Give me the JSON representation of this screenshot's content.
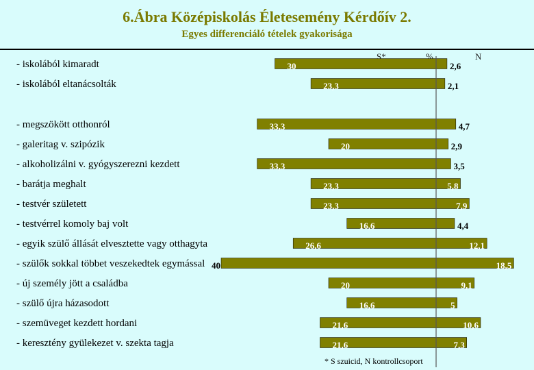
{
  "title": "6.Ábra    Középiskolás Életesemény Kérdőív 2.",
  "subtitle": "Egyes differenciáló tételek gyakorisága",
  "headers": {
    "s": "S*",
    "pct": "%",
    "n": "N"
  },
  "footnote": "* S szuicid, N kontrollcsoport",
  "colors": {
    "bar": "#808000",
    "value_text": "#ffffff",
    "background": "#d9fcfc",
    "axis": "#555555"
  },
  "chart_data": {
    "type": "bar",
    "orientation": "horizontal-diverging",
    "categories": [
      "- iskolából kimaradt",
      "- iskolából eltanácsolták",
      "- megszökött otthonról",
      "- galeritag v. szipózik",
      "- alkoholizálni v. gyógyszerezni kezdett",
      "- barátja meghalt",
      "- testvér született",
      "- testvérrel komoly baj volt",
      "- egyik szülő állását elvesztette vagy otthagyta",
      "- szülők sokkal többet veszekedtek egymással",
      "- új személy jött a családba",
      "- szülő újra házasodott",
      "- szemüveget kezdett hordani",
      "- keresztény gyülekezet v. szekta tagja"
    ],
    "series": [
      {
        "name": "S*",
        "values": [
          30,
          23.3,
          33.3,
          20,
          33.3,
          23.3,
          23.3,
          16.6,
          26.6,
          40,
          20,
          16.6,
          21.6,
          21.6
        ],
        "labels": [
          "30",
          "23,3",
          "33,3",
          "20",
          "33,3",
          "23,3",
          "23,3",
          "16,6",
          "26,6",
          "40",
          "20",
          "16,6",
          "21,6",
          "21,6"
        ]
      },
      {
        "name": "N",
        "values": [
          2.6,
          2.1,
          4.7,
          2.9,
          3.5,
          5.8,
          7.9,
          4.4,
          12.1,
          18.5,
          9.1,
          5,
          10.6,
          7.3
        ],
        "labels": [
          "2,6",
          "2,1",
          "4,7",
          "2,9",
          "3,5",
          "5,8",
          "7,9",
          "4,4",
          "12,1",
          "18,5",
          "9,1",
          "5",
          "10,6",
          "7,3"
        ]
      }
    ],
    "gap_after": [
      1
    ]
  }
}
